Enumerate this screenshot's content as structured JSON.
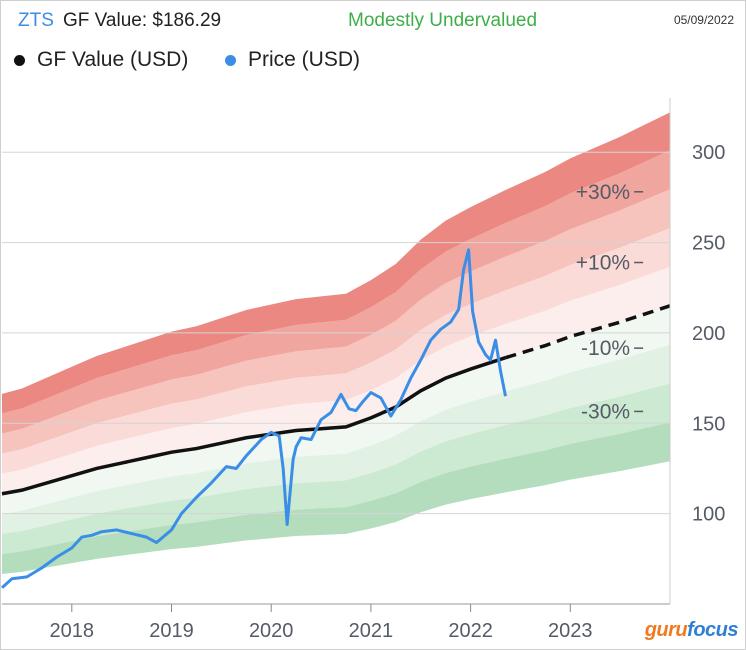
{
  "header": {
    "ticker": "ZTS",
    "gf_value_text": "GF Value: $186.29",
    "status": "Modestly Undervalued",
    "date": "05/09/2022"
  },
  "legend": [
    {
      "label": "GF Value (USD)",
      "color": "#111111"
    },
    {
      "label": "Price (USD)",
      "color": "#3a8ee8"
    }
  ],
  "brand": {
    "part1": "guru",
    "part2": "focus"
  },
  "colors": {
    "gf_line": "#111111",
    "price_line": "#3a8ee8",
    "red_band": "#e8736b",
    "green_band": "#6bbf7a",
    "status": "#3fae4b"
  },
  "chart_data": {
    "type": "line",
    "title": "ZTS GF Value: $186.29",
    "x_unit": "year",
    "xlim": [
      2017.3,
      2024.0
    ],
    "ylim": [
      50,
      330
    ],
    "x_ticks": [
      2018,
      2019,
      2020,
      2021,
      2022,
      2023
    ],
    "x_tick_labels": [
      "2018",
      "2019",
      "2020",
      "2021",
      "2022",
      "2023"
    ],
    "y_ticks": [
      100,
      150,
      200,
      250,
      300
    ],
    "y_tick_labels": [
      "100",
      "150",
      "200",
      "250",
      "300"
    ],
    "grid": true,
    "legend_position": "top-left",
    "band_labels": [
      "+30%",
      "+10%",
      "-10%",
      "-30%"
    ],
    "band_multipliers": [
      1.4,
      1.3,
      1.2,
      1.1,
      0.9,
      0.8,
      0.7,
      0.6
    ],
    "series": [
      {
        "name": "GF Value (USD)",
        "forecast_from": 2022.35,
        "x": [
          2017.3,
          2017.5,
          2017.75,
          2018.0,
          2018.25,
          2018.5,
          2018.75,
          2019.0,
          2019.25,
          2019.5,
          2019.75,
          2020.0,
          2020.25,
          2020.5,
          2020.75,
          2021.0,
          2021.25,
          2021.5,
          2021.75,
          2022.0,
          2022.35,
          2022.75,
          2023.0,
          2023.5,
          2024.0
        ],
        "y": [
          111,
          113,
          117,
          121,
          125,
          128,
          131,
          134,
          136,
          139,
          142,
          144,
          146,
          147,
          148,
          153,
          159,
          168,
          175,
          180,
          186.3,
          193,
          198,
          206,
          215
        ]
      },
      {
        "name": "Price (USD)",
        "x": [
          2017.3,
          2017.4,
          2017.55,
          2017.7,
          2017.85,
          2018.0,
          2018.1,
          2018.2,
          2018.3,
          2018.45,
          2018.6,
          2018.75,
          2018.85,
          2019.0,
          2019.1,
          2019.25,
          2019.4,
          2019.55,
          2019.65,
          2019.75,
          2019.9,
          2020.0,
          2020.08,
          2020.12,
          2020.16,
          2020.2,
          2020.22,
          2020.25,
          2020.3,
          2020.4,
          2020.5,
          2020.6,
          2020.7,
          2020.78,
          2020.85,
          2020.92,
          2021.0,
          2021.1,
          2021.2,
          2021.3,
          2021.4,
          2021.5,
          2021.6,
          2021.7,
          2021.8,
          2021.88,
          2021.93,
          2021.98,
          2022.02,
          2022.08,
          2022.15,
          2022.2,
          2022.25,
          2022.3,
          2022.35
        ],
        "y": [
          59,
          64,
          65,
          70,
          76,
          81,
          87,
          88,
          90,
          91,
          89,
          87,
          84,
          91,
          100,
          109,
          117,
          126,
          125,
          132,
          141,
          145,
          143,
          125,
          94,
          118,
          130,
          137,
          142,
          141,
          152,
          156,
          166,
          158,
          157,
          162,
          167,
          164,
          154,
          163,
          175,
          185,
          196,
          202,
          206,
          213,
          235,
          246,
          212,
          195,
          188,
          185,
          196,
          179,
          165
        ]
      }
    ]
  }
}
